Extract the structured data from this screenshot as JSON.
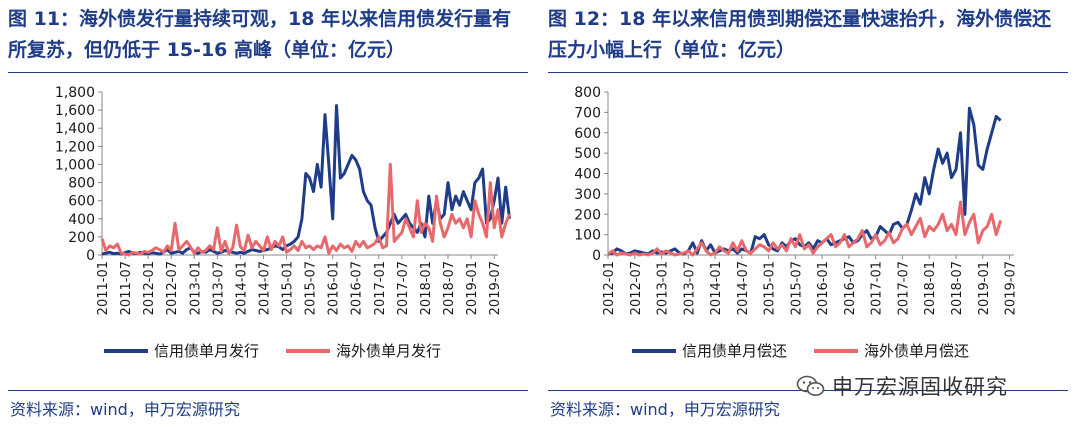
{
  "panels": [
    {
      "title": "图 11：海外债发行量持续可观，18 年以来信用债发行量有所复苏，但仍低于 15-16 高峰（单位：亿元）",
      "source": "资料来源：wind，申万宏源研究"
    },
    {
      "title": "图 12：18 年以来信用债到期偿还量快速抬升，海外债偿还压力小幅上行（单位：亿元）",
      "source": "资料来源：wind，申万宏源研究"
    }
  ],
  "watermark": {
    "text": "申万宏源固收研究",
    "icon": "wechat-icon"
  },
  "colors": {
    "blue": "#1f3c88",
    "red": "#e8686b",
    "accent": "#1f3c88"
  },
  "chart_data": [
    {
      "type": "line",
      "ylim": [
        0,
        1800
      ],
      "yticks": [
        "0",
        "200",
        "400",
        "600",
        "800",
        "1,000",
        "1,200",
        "1,400",
        "1,600",
        "1,800"
      ],
      "x_labels": [
        "2011-01",
        "2011-07",
        "2012-01",
        "2012-07",
        "2013-01",
        "2013-07",
        "2014-01",
        "2014-07",
        "2015-01",
        "2015-07",
        "2016-01",
        "2016-07",
        "2017-01",
        "2017-07",
        "2018-01",
        "2018-07",
        "2019-01",
        "2019-07"
      ],
      "x_start": "2011-01",
      "x_end": "2019-08",
      "legend_position": "bottom",
      "series": [
        {
          "name": "信用债单月发行",
          "color": "#1f3c88",
          "values": [
            10,
            20,
            30,
            15,
            20,
            10,
            25,
            40,
            20,
            15,
            30,
            20,
            15,
            25,
            20,
            10,
            30,
            60,
            20,
            30,
            40,
            20,
            60,
            80,
            30,
            20,
            40,
            30,
            60,
            40,
            20,
            30,
            50,
            40,
            30,
            20,
            30,
            20,
            40,
            60,
            50,
            40,
            50,
            60,
            80,
            100,
            90,
            60,
            100,
            120,
            150,
            200,
            400,
            900,
            850,
            700,
            1000,
            750,
            1550,
            1000,
            400,
            1650,
            850,
            900,
            1000,
            1100,
            1050,
            950,
            700,
            600,
            550,
            300,
            150,
            200,
            250,
            350,
            450,
            350,
            400,
            450,
            350,
            300,
            250,
            350,
            200,
            650,
            350,
            600,
            400,
            450,
            800,
            500,
            650,
            550,
            700,
            600,
            500,
            800,
            850,
            950,
            350,
            400,
            600,
            850,
            350,
            750,
            400
          ]
        },
        {
          "name": "海外债单月发行",
          "color": "#e8686b",
          "values": [
            180,
            50,
            100,
            80,
            120,
            20,
            10,
            0,
            30,
            20,
            10,
            40,
            30,
            50,
            80,
            60,
            30,
            100,
            50,
            350,
            60,
            100,
            150,
            90,
            20,
            80,
            30,
            50,
            100,
            60,
            300,
            40,
            150,
            20,
            80,
            330,
            90,
            50,
            220,
            80,
            150,
            100,
            50,
            200,
            60,
            150,
            100,
            200,
            30,
            60,
            100,
            50,
            150,
            80,
            100,
            60,
            100,
            80,
            200,
            20,
            100,
            50,
            120,
            80,
            100,
            40,
            150,
            90,
            150,
            80,
            100,
            130,
            200,
            80,
            100,
            1000,
            150,
            200,
            250,
            400,
            300,
            200,
            600,
            250,
            350,
            300,
            150,
            650,
            350,
            200,
            300,
            450,
            350,
            400,
            300,
            400,
            200,
            600,
            450,
            350,
            200,
            800,
            300,
            500,
            200,
            350,
            450
          ]
        }
      ]
    },
    {
      "type": "line",
      "ylim": [
        0,
        800
      ],
      "yticks": [
        "0",
        "100",
        "200",
        "300",
        "400",
        "500",
        "600",
        "700",
        "800"
      ],
      "x_labels": [
        "2012-01",
        "2012-07",
        "2013-01",
        "2013-07",
        "2014-01",
        "2014-07",
        "2015-01",
        "2015-07",
        "2016-01",
        "2016-07",
        "2017-01",
        "2017-07",
        "2018-01",
        "2018-07",
        "2019-01",
        "2019-07"
      ],
      "x_start": "2012-01",
      "x_end": "2019-08",
      "legend_position": "bottom",
      "series": [
        {
          "name": "信用债单月偿还",
          "color": "#1f3c88",
          "values": [
            5,
            10,
            30,
            20,
            5,
            10,
            20,
            15,
            10,
            5,
            20,
            10,
            15,
            10,
            20,
            30,
            10,
            5,
            20,
            60,
            10,
            70,
            20,
            50,
            10,
            20,
            30,
            20,
            30,
            10,
            30,
            20,
            10,
            90,
            80,
            100,
            50,
            30,
            20,
            60,
            40,
            70,
            80,
            50,
            40,
            60,
            30,
            70,
            60,
            80,
            50,
            60,
            70,
            80,
            90,
            60,
            70,
            100,
            120,
            80,
            90,
            140,
            120,
            100,
            150,
            160,
            130,
            150,
            220,
            300,
            250,
            380,
            300,
            420,
            520,
            450,
            500,
            380,
            420,
            600,
            200,
            720,
            640,
            440,
            420,
            520,
            600,
            680,
            660
          ]
        },
        {
          "name": "海外债单月偿还",
          "color": "#e8686b",
          "values": [
            5,
            20,
            0,
            10,
            5,
            0,
            10,
            0,
            5,
            0,
            10,
            30,
            5,
            20,
            10,
            0,
            5,
            10,
            20,
            0,
            30,
            60,
            20,
            0,
            10,
            40,
            20,
            10,
            60,
            20,
            70,
            20,
            10,
            30,
            50,
            40,
            20,
            60,
            30,
            50,
            20,
            80,
            40,
            100,
            30,
            50,
            10,
            40,
            60,
            80,
            100,
            40,
            60,
            100,
            40,
            60,
            80,
            120,
            40,
            60,
            100,
            50,
            70,
            110,
            60,
            80,
            130,
            150,
            100,
            140,
            180,
            90,
            140,
            120,
            150,
            200,
            120,
            150,
            100,
            260,
            100,
            160,
            200,
            60,
            120,
            140,
            200,
            100,
            170
          ]
        }
      ]
    }
  ]
}
